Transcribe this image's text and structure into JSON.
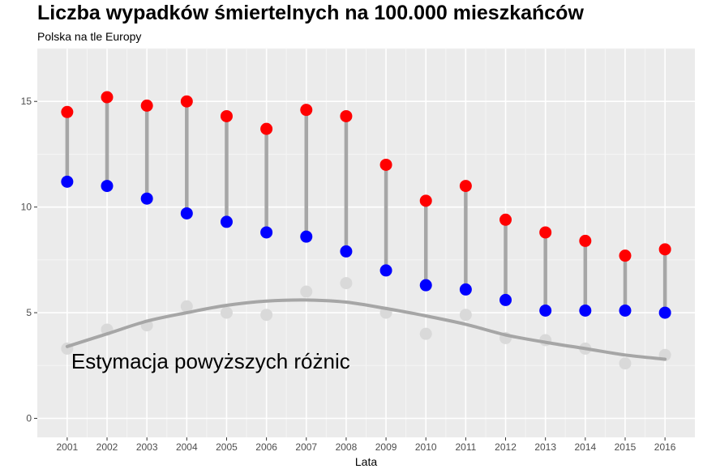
{
  "chart_data": {
    "type": "scatter",
    "title": "Liczba wypadków śmiertelnych na 100.000 mieszkańców",
    "subtitle": "Polska na tle Europy",
    "xlabel": "Lata",
    "ylabel": "",
    "x": [
      2001,
      2002,
      2003,
      2004,
      2005,
      2006,
      2007,
      2008,
      2009,
      2010,
      2011,
      2012,
      2013,
      2014,
      2015,
      2016
    ],
    "ylim": [
      -0.9,
      17.5
    ],
    "yticks": [
      0,
      5,
      10,
      15
    ],
    "grid": true,
    "series": [
      {
        "values": [
          14.5,
          15.2,
          14.8,
          15.0,
          14.3,
          13.7,
          14.6,
          14.3,
          12.0,
          10.3,
          11.0,
          9.4,
          8.8,
          8.4,
          7.7,
          8.0
        ]
      },
      {
        "values": [
          11.2,
          11.0,
          10.4,
          9.7,
          9.3,
          8.8,
          8.6,
          7.9,
          7.0,
          6.3,
          6.1,
          5.6,
          5.1,
          5.1,
          5.1,
          5.0
        ]
      },
      {
        "values": [
          3.3,
          4.2,
          4.4,
          5.3,
          5.0,
          4.9,
          6.0,
          6.4,
          5.0,
          4.0,
          4.9,
          3.8,
          3.7,
          3.3,
          2.6,
          3.0
        ]
      }
    ],
    "trend": {
      "x": [
        2001,
        2002,
        2003,
        2004,
        2005,
        2006,
        2007,
        2008,
        2009,
        2010,
        2011,
        2012,
        2013,
        2014,
        2015,
        2016
      ],
      "y": [
        3.4,
        4.0,
        4.6,
        5.0,
        5.35,
        5.55,
        5.6,
        5.5,
        5.2,
        4.85,
        4.45,
        3.95,
        3.6,
        3.3,
        3.0,
        2.8
      ]
    },
    "annotation": {
      "text": "Estymacja powyższych różnic",
      "x": 2004.6,
      "y": 2.7
    },
    "colors": {
      "panel": "#ebebeb",
      "gridMajor": "#ffffff",
      "gridMinor": "#f5f5f5",
      "segment": "#a6a6a6",
      "high": "#ff0000",
      "low": "#0000ff",
      "diff": "#d9d9d9",
      "trend": "#a6a6a6"
    }
  }
}
